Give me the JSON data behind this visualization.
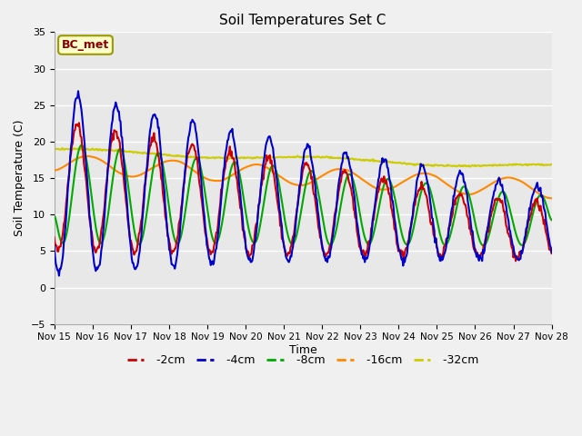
{
  "title": "Soil Temperatures Set C",
  "xlabel": "Time",
  "ylabel": "Soil Temperature (C)",
  "ylim": [
    -5,
    35
  ],
  "yticks": [
    -5,
    0,
    5,
    10,
    15,
    20,
    25,
    30,
    35
  ],
  "xtick_labels": [
    "Nov 15",
    "Nov 16",
    "Nov 17",
    "Nov 18",
    "Nov 19",
    "Nov 20",
    "Nov 21",
    "Nov 22",
    "Nov 23",
    "Nov 24",
    "Nov 25",
    "Nov 26",
    "Nov 27",
    "Nov 28"
  ],
  "colors": {
    "-2cm": "#cc0000",
    "-4cm": "#0000cc",
    "-8cm": "#00aa00",
    "-16cm": "#ff8800",
    "-32cm": "#cccc00"
  },
  "label_box_text": "BC_met",
  "label_box_facecolor": "#ffffcc",
  "label_box_edgecolor": "#999900",
  "label_box_textcolor": "#880000",
  "fig_facecolor": "#f0f0f0",
  "ax_facecolor": "#e8e8e8",
  "grid_color": "#ffffff",
  "linewidth": 1.5,
  "legend_dash_color_2cm": "#cc0000",
  "legend_dash_color_4cm": "#0000cc",
  "legend_dash_color_8cm": "#00aa00",
  "legend_dash_color_16cm": "#ff8800",
  "legend_dash_color_32cm": "#cccc00"
}
